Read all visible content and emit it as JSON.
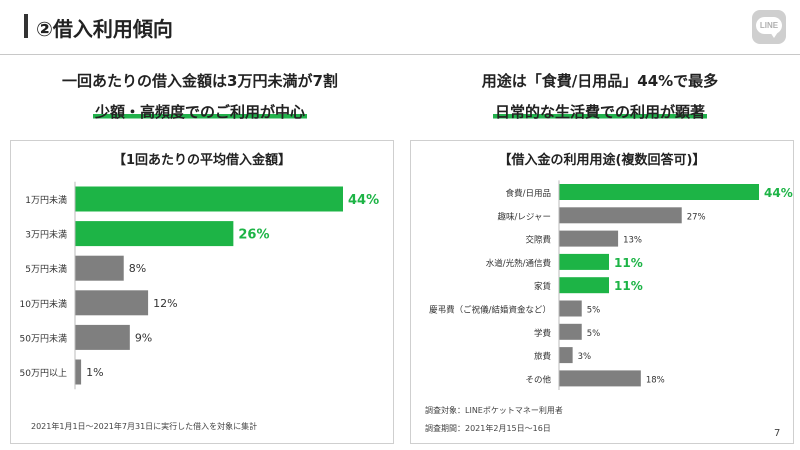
{
  "header": {
    "title": "②借入利用傾向",
    "logo_text": "LINE"
  },
  "left": {
    "headline": "一回あたりの借入金額は3万円未満が7割",
    "subheadline": "少額・高頻度でのご利用が中心",
    "footnote": "2021年1月1日～2021年7月31日に実行した借入を対象に集計"
  },
  "right": {
    "headline": "用途は「食費/日用品」44%で最多",
    "subheadline": "日常的な生活費での利用が顕著",
    "footnote1": "調査対象：LINEポケットマネー利用者",
    "footnote2": "調査期間：2021年2月15日～16日"
  },
  "colors": {
    "highlight": "#1db446",
    "normal": "#7f7f7f"
  },
  "page_number": "7",
  "chart_data": [
    {
      "type": "bar",
      "orientation": "horizontal",
      "title": "【1回あたりの平均借入金額】",
      "categories": [
        "1万円未満",
        "3万円未満",
        "5万円未満",
        "10万円未満",
        "50万円未満",
        "50万円以上"
      ],
      "values": [
        44,
        26,
        8,
        12,
        9,
        1
      ],
      "labels": [
        "44%",
        "26%",
        "8%",
        "12%",
        "9%",
        "1%"
      ],
      "highlight": [
        true,
        true,
        false,
        false,
        false,
        false
      ],
      "unit": "%",
      "xlim": [
        0,
        44
      ]
    },
    {
      "type": "bar",
      "orientation": "horizontal",
      "title": "【借入金の利用用途(複数回答可)】",
      "categories": [
        "食費/日用品",
        "趣味/レジャー",
        "交際費",
        "水道/光熱/通信費",
        "家賃",
        "慶弔費（ご祝儀/結婚資金など）",
        "学費",
        "旅費",
        "その他"
      ],
      "values": [
        44,
        27,
        13,
        11,
        11,
        5,
        5,
        3,
        18
      ],
      "labels": [
        "44%",
        "27%",
        "13%",
        "11%",
        "11%",
        "5%",
        "5%",
        "3%",
        "18%"
      ],
      "highlight": [
        true,
        false,
        false,
        true,
        true,
        false,
        false,
        false,
        false
      ],
      "unit": "%",
      "xlim": [
        0,
        44
      ]
    }
  ]
}
